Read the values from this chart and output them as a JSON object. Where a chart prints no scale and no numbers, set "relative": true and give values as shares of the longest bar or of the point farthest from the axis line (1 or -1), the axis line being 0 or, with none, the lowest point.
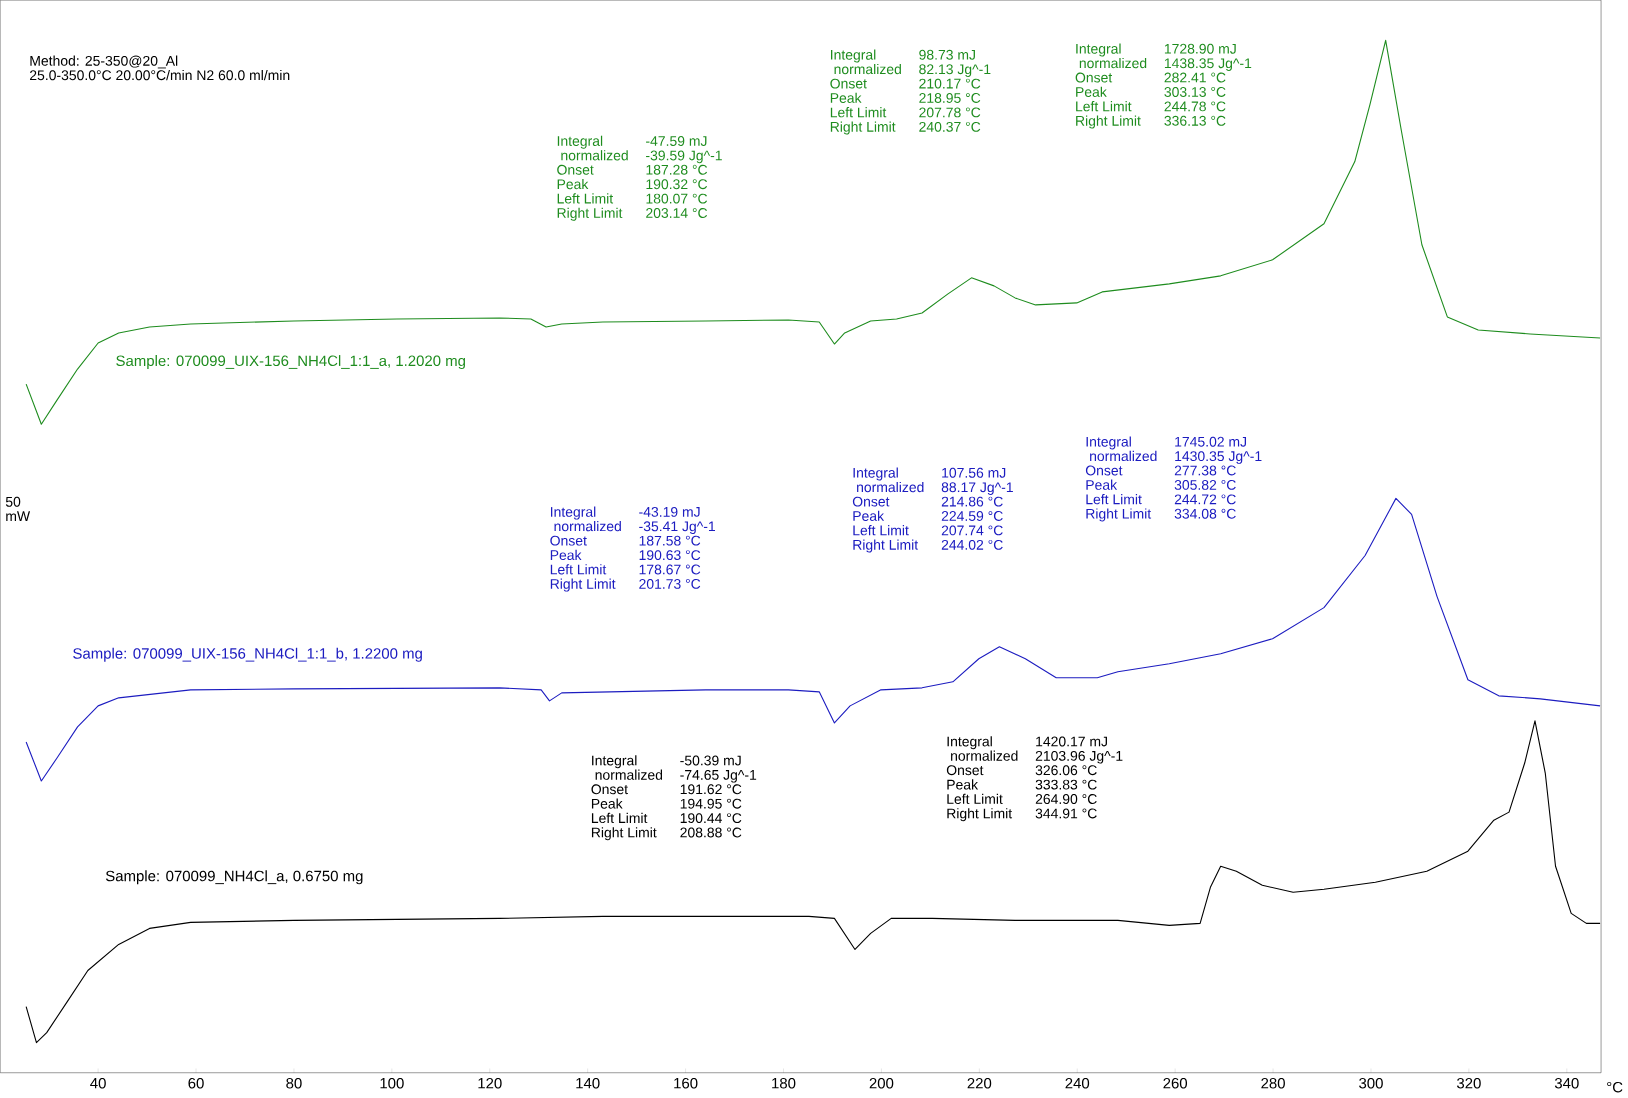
{
  "chart_data": {
    "type": "line",
    "relative": true,
    "xlabel": "°C",
    "xlim": [
      20,
      347
    ],
    "xticks": [
      40,
      60,
      80,
      100,
      120,
      140,
      160,
      180,
      200,
      220,
      240,
      260,
      280,
      300,
      320,
      340
    ],
    "tick_labels": "x",
    "grid": false,
    "marker": "none",
    "line_style": "solid",
    "series": [
      {
        "name": "Sample: 070099_UIX-156_NH4Cl_1:1_a, 1.2020 mg",
        "color": "#1e8c1e",
        "x": [
          25.3,
          28.4,
          31.6,
          35.8,
          40,
          44.2,
          50.5,
          58.9,
          80,
          101,
          122,
          128.4,
          131.5,
          134.7,
          143.1,
          164.1,
          181,
          187.3,
          190.4,
          192.5,
          197.8,
          203.1,
          208.3,
          213.6,
          218.4,
          223,
          227.3,
          231.5,
          239.9,
          245.1,
          258.8,
          269.3,
          279.9,
          290.4,
          296.7,
          299.8,
          303,
          306.2,
          310.4,
          315.6,
          321.9,
          332.5,
          346.8
        ],
        "values": [
          0.657,
          0.617,
          0.641,
          0.672,
          0.698,
          0.708,
          0.714,
          0.717,
          0.72,
          0.722,
          0.723,
          0.722,
          0.714,
          0.717,
          0.719,
          0.72,
          0.721,
          0.719,
          0.697,
          0.708,
          0.72,
          0.722,
          0.728,
          0.747,
          0.763,
          0.755,
          0.743,
          0.736,
          0.738,
          0.749,
          0.757,
          0.765,
          0.781,
          0.817,
          0.879,
          0.936,
          1.0,
          0.91,
          0.796,
          0.724,
          0.711,
          0.707,
          0.703
        ]
      },
      {
        "name": "Sample: 070099_UIX-156_NH4Cl_1:1_b, 1.2200 mg",
        "color": "#1c1cc0",
        "x": [
          25.3,
          28.4,
          31.6,
          35.8,
          40,
          44.2,
          58.9,
          80,
          122,
          130.5,
          132.2,
          134.7,
          164.1,
          181,
          187.3,
          190.4,
          193.6,
          199.9,
          208.3,
          214.6,
          219.9,
          224.1,
          229.4,
          235.7,
          244.1,
          248.3,
          258.8,
          269.3,
          279.9,
          290.4,
          298.8,
          305.1,
          308.3,
          313.5,
          319.8,
          326.1,
          334.6,
          346.8
        ],
        "values": [
          0.3,
          0.261,
          0.284,
          0.315,
          0.336,
          0.344,
          0.352,
          0.353,
          0.354,
          0.352,
          0.341,
          0.349,
          0.352,
          0.352,
          0.35,
          0.319,
          0.336,
          0.352,
          0.354,
          0.36,
          0.383,
          0.395,
          0.383,
          0.364,
          0.364,
          0.37,
          0.378,
          0.388,
          0.403,
          0.434,
          0.486,
          0.543,
          0.527,
          0.445,
          0.362,
          0.346,
          0.343,
          0.336
        ]
      },
      {
        "name": "Sample: 070099_NH4Cl_a, 0.6750 mg",
        "color": "#000000",
        "x": [
          25.3,
          27.4,
          29.5,
          33.7,
          37.9,
          44.2,
          50.5,
          58.9,
          80,
          122,
          143.1,
          164.1,
          185.2,
          190.4,
          194.6,
          197.8,
          202,
          210.4,
          227.3,
          248.3,
          258.8,
          265.1,
          267.2,
          269.3,
          272.5,
          277.8,
          284.1,
          290.4,
          300.9,
          311.4,
          319.8,
          325.1,
          328.2,
          331.4,
          333.5,
          335.6,
          337.7,
          340.9,
          344,
          346.8
        ],
        "values": [
          0.036,
          0,
          0.01,
          0.041,
          0.072,
          0.098,
          0.114,
          0.12,
          0.122,
          0.124,
          0.126,
          0.126,
          0.126,
          0.124,
          0.093,
          0.109,
          0.124,
          0.124,
          0.122,
          0.122,
          0.117,
          0.119,
          0.155,
          0.176,
          0.171,
          0.157,
          0.15,
          0.153,
          0.16,
          0.171,
          0.191,
          0.222,
          0.23,
          0.279,
          0.321,
          0.269,
          0.176,
          0.129,
          0.119,
          0.119
        ]
      }
    ],
    "annotations": [
      "Method: 25-350@20_Al",
      "25.0-350.0°C 20.00°C/min      N2 60.0 ml/min",
      "50",
      "mW",
      "Integral",
      "-47.59 mJ",
      " normalized",
      "-39.59 Jg^-1",
      "Onset",
      "187.28 °C",
      "Peak",
      "190.32 °C",
      "Left Limit",
      "180.07 °C",
      "Right Limit",
      "203.14 °C",
      "Integral",
      "98.73 mJ",
      " normalized",
      "82.13 Jg^-1",
      "Onset",
      "210.17 °C",
      "Peak",
      "218.95 °C",
      "Left Limit",
      "207.78 °C",
      "Right Limit",
      "240.37 °C",
      "Integral",
      "1728.90 mJ",
      " normalized",
      "1438.35 Jg^-1",
      "Onset",
      "282.41 °C",
      "Peak",
      "303.13 °C",
      "Left Limit",
      "244.78 °C",
      "Right Limit",
      "336.13 °C",
      "Integral",
      "-43.19 mJ",
      " normalized",
      "-35.41 Jg^-1",
      "Onset",
      "187.58 °C",
      "Peak",
      "190.63 °C",
      "Left Limit",
      "178.67 °C",
      "Right Limit",
      "201.73 °C",
      "Integral",
      "107.56 mJ",
      " normalized",
      "88.17 Jg^-1",
      "Onset",
      "214.86 °C",
      "Peak",
      "224.59 °C",
      "Left Limit",
      "207.74 °C",
      "Right Limit",
      "244.02 °C",
      "Integral",
      "1745.02 mJ",
      " normalized",
      "1430.35 Jg^-1",
      "Onset",
      "277.38 °C",
      "Peak",
      "305.82 °C",
      "Left Limit",
      "244.72 °C",
      "Right Limit",
      "334.08 °C",
      "Integral",
      "-50.39 mJ",
      " normalized",
      "-74.65 Jg^-1",
      "Onset",
      "191.62 °C",
      "Peak",
      "194.95 °C",
      "Left Limit",
      "190.44 °C",
      "Right Limit",
      "208.88 °C",
      "Integral",
      "1420.17 mJ",
      " normalized",
      "2103.96 Jg^-1",
      "Onset",
      "326.06 °C",
      "Peak",
      "333.83 °C",
      "Left Limit",
      "264.90 °C",
      "Right Limit",
      "344.91 °C"
    ]
  }
}
